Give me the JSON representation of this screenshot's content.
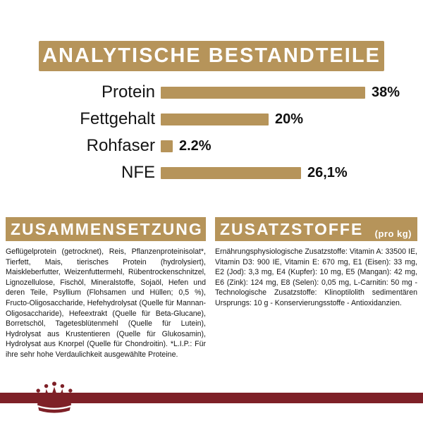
{
  "colors": {
    "accent_gold": "#B6945A",
    "brand_red": "#7E2027"
  },
  "banner": {
    "title": "ANALYTISCHE BESTANDTEILE"
  },
  "chart_data": {
    "type": "bar",
    "orientation": "horizontal",
    "categories": [
      "Protein",
      "Fettgehalt",
      "Rohfaser",
      "NFE"
    ],
    "values": [
      38,
      20,
      2.2,
      26.1
    ],
    "value_labels": [
      "38%",
      "20%",
      "2.2%",
      "26,1%"
    ],
    "title": "Analytische Bestandteile",
    "xlabel": "",
    "ylabel": "",
    "xlim": [
      0,
      40
    ],
    "grid": false,
    "legend": false,
    "bar_color": "#B6945A"
  },
  "sections": {
    "left": {
      "title": "ZUSAMMENSETZUNG",
      "body": "Geflügelprotein (getrocknet), Reis, Pflanzenproteinisolat*, Tierfett, Mais, tierisches Protein (hydrolysiert), Maiskleberfutter, Weizenfuttermehl, Rübentrockenschnitzel, Lignozellulose, Fischöl, Mineralstoffe, Sojaöl, Hefen und deren Teile, Psyllium (Flohsamen und Hüllen; 0,5 %), Fructo-Oligosaccharide, Hefehydrolysat (Quelle für Mannan-Oligosaccharide), Hefeextrakt (Quelle für Beta-Glucane), Borretschöl, Tagetesblütenmehl (Quelle für Lutein), Hydrolysat aus Krustentieren (Quelle für Glukosamin), Hydrolysat aus Knorpel (Quelle für Chondroitin). *L.I.P.: Für ihre sehr hohe Verdaulichkeit ausgewählte Proteine."
    },
    "right": {
      "title": "ZUSATZSTOFFE",
      "subtitle": "(pro kg)",
      "body": "Ernährungsphysiologische Zusatzstoffe: Vitamin A: 33500 IE, Vitamin D3: 900 IE, Vitamin E: 670 mg, E1 (Eisen): 33 mg, E2 (Jod): 3,3 mg, E4 (Kupfer): 10 mg, E5 (Mangan): 42 mg, E6 (Zink): 124 mg, E8 (Selen): 0,05 mg, L-Carnitin: 50 mg - Technologische Zusatzstoffe: Klinoptilolith sedimentären Ursprungs: 10 g - Konservierungsstoffe - Antioxidanzien."
    }
  },
  "footer": {
    "logo_icon": "royal-canin-crown-icon"
  }
}
